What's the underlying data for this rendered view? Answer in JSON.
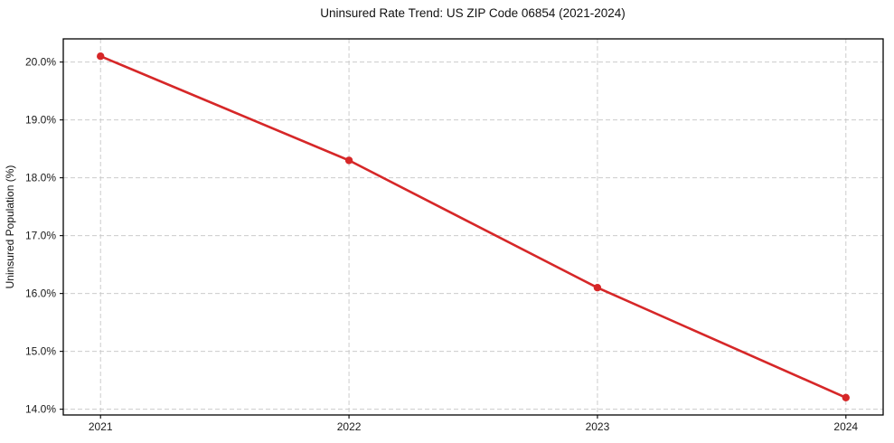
{
  "chart_data": {
    "type": "line",
    "title": "Uninsured Rate Trend: US ZIP Code 06854 (2021-2024)",
    "xlabel": "",
    "ylabel": "Uninsured Population (%)",
    "x": [
      2021,
      2022,
      2023,
      2024
    ],
    "values": [
      20.1,
      18.3,
      16.1,
      14.2
    ],
    "xticks": [
      2021,
      2022,
      2023,
      2024
    ],
    "xtick_labels": [
      "2021",
      "2022",
      "2023",
      "2024"
    ],
    "yticks": [
      14,
      15,
      16,
      17,
      18,
      19,
      20
    ],
    "ytick_labels": [
      "14.0%",
      "15.0%",
      "16.0%",
      "17.0%",
      "18.0%",
      "19.0%",
      "20.0%"
    ],
    "xlim": [
      2020.85,
      2024.15
    ],
    "ylim": [
      13.9,
      20.4
    ],
    "grid": true,
    "grid_style": "dashed",
    "grid_color": "#cccccc",
    "line_color": "#d62728",
    "marker": "circle",
    "marker_radius": 4.2,
    "legend": "none"
  }
}
